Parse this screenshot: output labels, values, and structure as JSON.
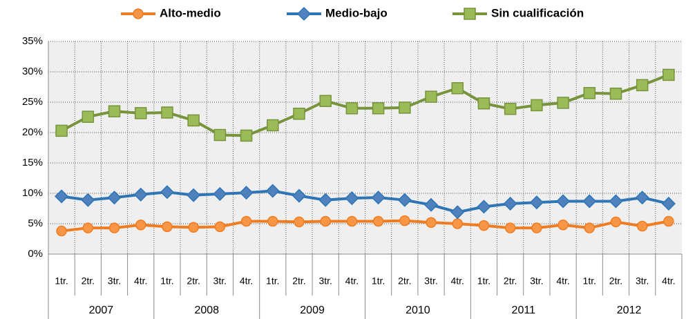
{
  "chart_data": {
    "type": "line",
    "categories": [
      "1tr.",
      "2tr.",
      "3tr.",
      "4tr.",
      "1tr.",
      "2tr.",
      "3tr.",
      "4tr.",
      "1tr.",
      "2tr.",
      "3tr.",
      "4tr.",
      "1tr.",
      "2tr.",
      "3tr.",
      "4tr.",
      "1tr.",
      "2tr.",
      "3tr.",
      "4tr.",
      "1tr.",
      "2tr.",
      "3tr.",
      "4tr."
    ],
    "years": [
      "2007",
      "2008",
      "2009",
      "2010",
      "2011",
      "2012"
    ],
    "series": [
      {
        "name": "Alto-medio",
        "color": "#f07c22",
        "marker": "circle",
        "marker_fill": "#f79646",
        "values": [
          3.8,
          4.3,
          4.3,
          4.8,
          4.5,
          4.4,
          4.5,
          5.4,
          5.4,
          5.3,
          5.4,
          5.4,
          5.4,
          5.5,
          5.2,
          5.0,
          4.7,
          4.3,
          4.3,
          4.8,
          4.3,
          5.3,
          4.6,
          5.4
        ]
      },
      {
        "name": "Medio-bajo",
        "color": "#2e75b6",
        "marker": "diamond",
        "marker_fill": "#4f81bd",
        "values": [
          9.5,
          8.9,
          9.3,
          9.8,
          10.2,
          9.7,
          9.9,
          10.1,
          10.4,
          9.6,
          8.9,
          9.2,
          9.3,
          8.9,
          8.1,
          6.9,
          7.8,
          8.3,
          8.5,
          8.7,
          8.7,
          8.7,
          9.3,
          8.3
        ]
      },
      {
        "name": "Sin cualificación",
        "color": "#77933c",
        "marker": "square",
        "marker_fill": "#9bbb59",
        "values": [
          20.3,
          22.6,
          23.5,
          23.2,
          23.3,
          22.0,
          19.6,
          19.5,
          21.2,
          23.1,
          25.2,
          24.0,
          24.0,
          24.1,
          25.9,
          27.3,
          24.8,
          23.9,
          24.5,
          24.9,
          26.5,
          26.4,
          27.8,
          29.5
        ]
      }
    ],
    "ylim": [
      0,
      35
    ],
    "yticks": [
      {
        "value": 0,
        "label": "0%"
      },
      {
        "value": 5,
        "label": "5%"
      },
      {
        "value": 10,
        "label": "10%"
      },
      {
        "value": 15,
        "label": "15%"
      },
      {
        "value": 20,
        "label": "20%"
      },
      {
        "value": 25,
        "label": "25%"
      },
      {
        "value": 30,
        "label": "30%"
      },
      {
        "value": 35,
        "label": "35%"
      }
    ],
    "grid": true,
    "legend": "top"
  }
}
